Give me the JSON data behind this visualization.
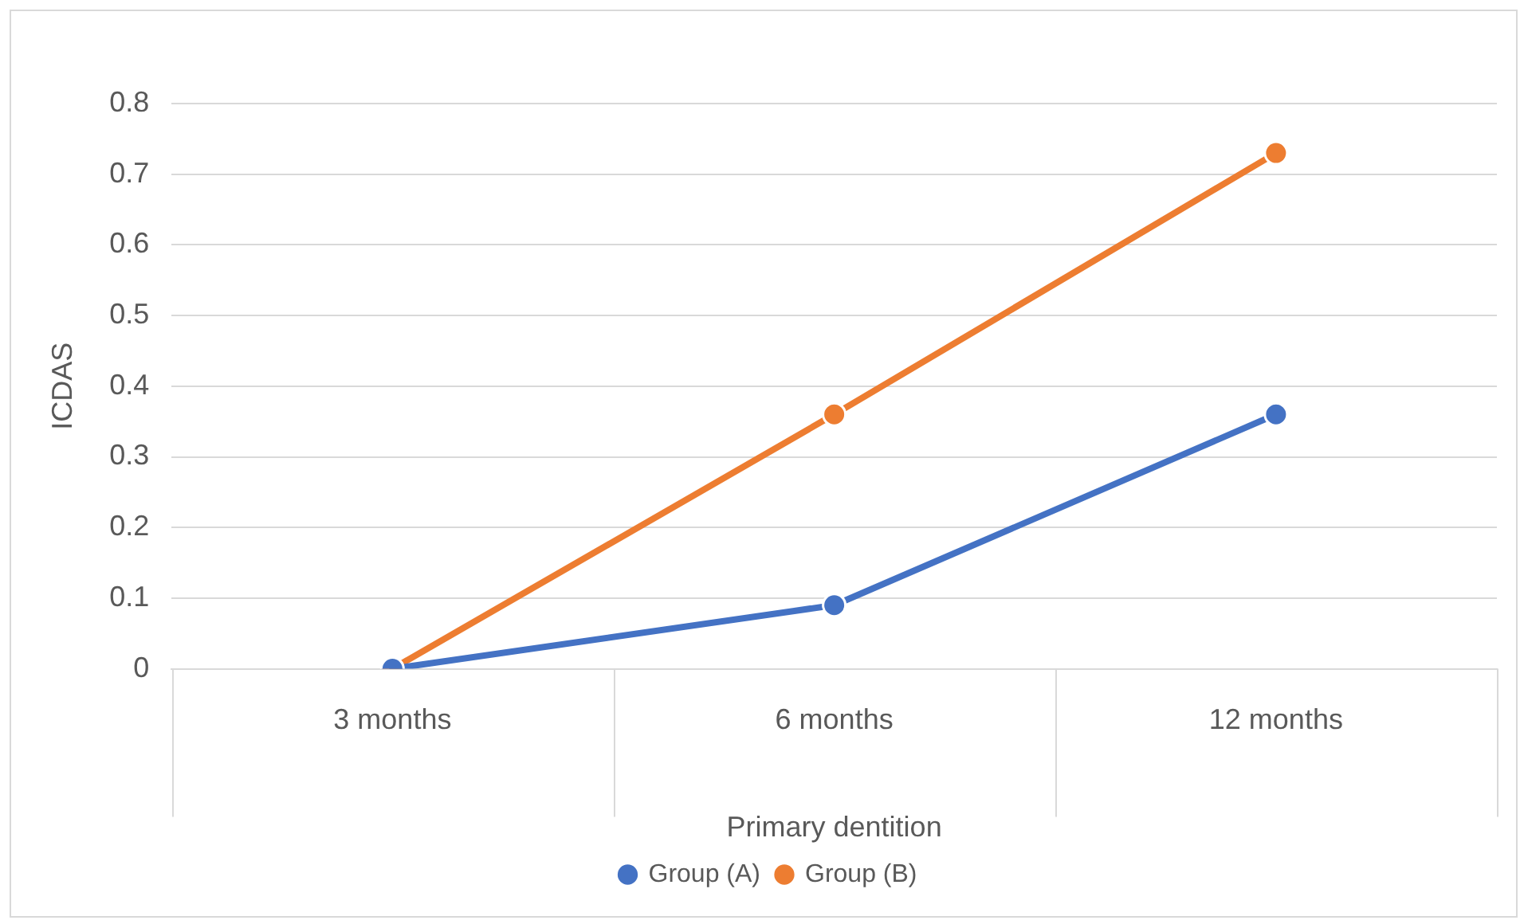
{
  "chart_data": {
    "type": "line",
    "xlabel": "Primary dentition",
    "ylabel": "ICDAS",
    "categories": [
      "3 months",
      "6 months",
      "12 months"
    ],
    "series": [
      {
        "name": "Group (A)",
        "color": "#4472c4",
        "values": [
          0,
          0.09,
          0.36
        ]
      },
      {
        "name": "Group (B)",
        "color": "#ed7d31",
        "values": [
          0,
          0.36,
          0.73
        ]
      }
    ],
    "ylim": [
      0,
      0.8
    ],
    "yticks": [
      0,
      0.1,
      0.2,
      0.3,
      0.4,
      0.5,
      0.6,
      0.7,
      0.8
    ],
    "grid": "y",
    "legend": "bottom",
    "marker": "circle",
    "line_style": "solid"
  }
}
